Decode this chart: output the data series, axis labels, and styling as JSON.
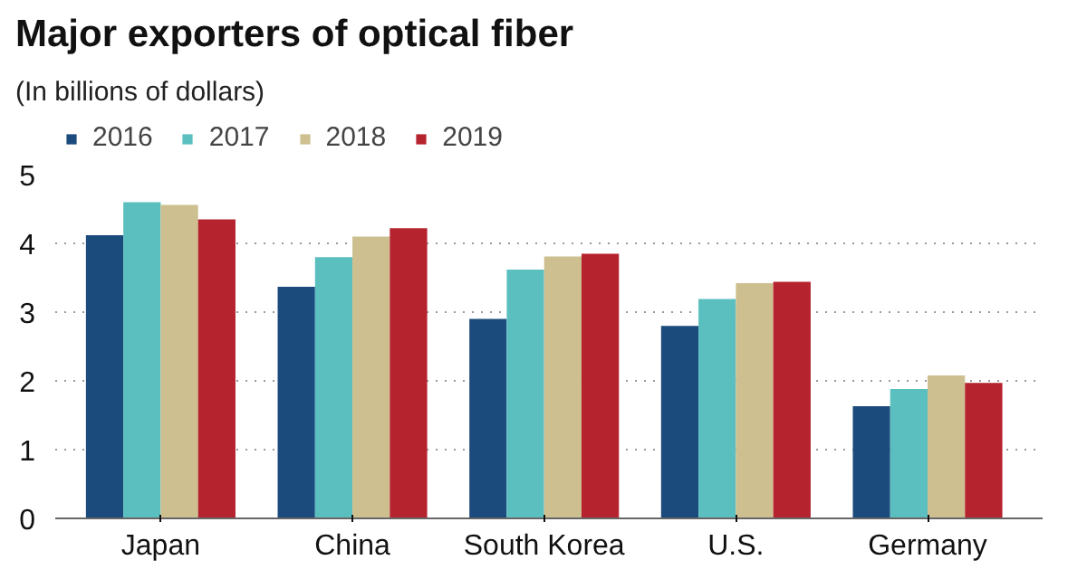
{
  "chart_data": {
    "type": "bar",
    "title": "Major exporters of optical fiber",
    "subtitle": "(In billions of dollars)",
    "categories": [
      "Japan",
      "China",
      "South Korea",
      "U.S.",
      "Germany"
    ],
    "series": [
      {
        "name": "2016",
        "color": "#1b4a7c",
        "values": [
          4.12,
          3.37,
          2.9,
          2.8,
          1.63
        ]
      },
      {
        "name": "2017",
        "color": "#5bbfbf",
        "values": [
          4.6,
          3.8,
          3.62,
          3.19,
          1.88
        ]
      },
      {
        "name": "2018",
        "color": "#cdbf8f",
        "values": [
          4.56,
          4.1,
          3.81,
          3.42,
          2.08
        ]
      },
      {
        "name": "2019",
        "color": "#b5232e",
        "values": [
          4.35,
          4.22,
          3.85,
          3.44,
          1.97
        ]
      }
    ],
    "ylim": [
      0,
      5
    ],
    "yticks": [
      0,
      1,
      2,
      3,
      4,
      5
    ],
    "grid": "y",
    "legend": "top left"
  }
}
